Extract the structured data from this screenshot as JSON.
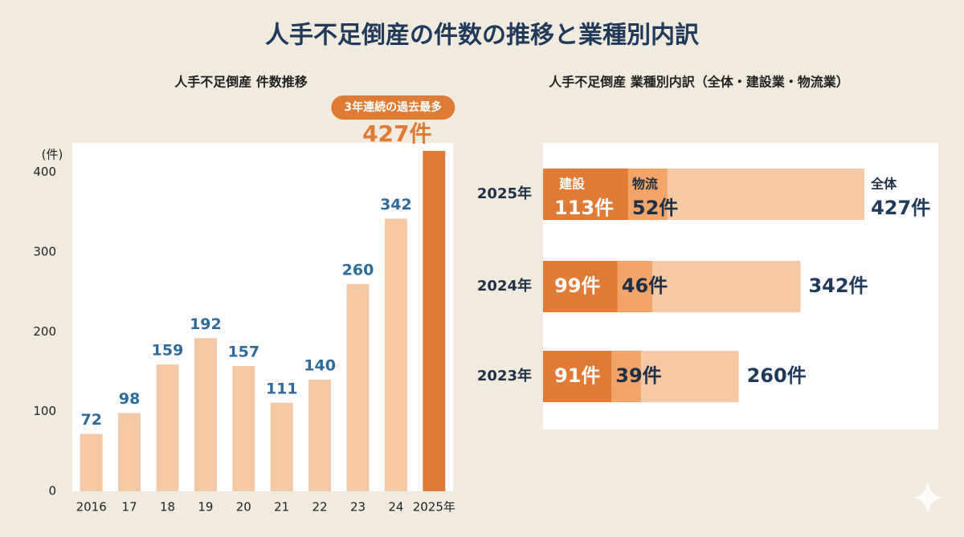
{
  "title": "人手不足倒産の件数の推移と業種別内訳",
  "chart_data": [
    {
      "type": "bar",
      "subtitle": "人手不足倒産 件数推移",
      "y_label": "(件)",
      "categories": [
        "2016",
        "17",
        "18",
        "19",
        "20",
        "21",
        "22",
        "23",
        "24",
        "2025年"
      ],
      "values": [
        72,
        98,
        159,
        192,
        157,
        111,
        140,
        260,
        342,
        427
      ],
      "value_labels": [
        "72",
        "98",
        "159",
        "192",
        "157",
        "111",
        "140",
        "260",
        "342",
        "427件"
      ],
      "colors": [
        "#f5c9a5",
        "#f5c9a5",
        "#f5c9a5",
        "#f5c9a5",
        "#f5c9a5",
        "#f5c9a5",
        "#f5c9a5",
        "#f5c9a5",
        "#f5c9a5",
        "#e07b35"
      ],
      "label_colors": [
        "#2f6b9a",
        "#2f6b9a",
        "#2f6b9a",
        "#2f6b9a",
        "#2f6b9a",
        "#2f6b9a",
        "#2f6b9a",
        "#2f6b9a",
        "#2f6b9a",
        "#e07b35"
      ],
      "annotation": "3年連続の過去最多",
      "ylim": [
        0,
        437
      ],
      "yticks": [
        0,
        100,
        200,
        300,
        400
      ],
      "grid": false
    },
    {
      "type": "barh",
      "subtitle": "人手不足倒産 業種別内訳（全体・建設業・物流業）",
      "categories": [
        "2025年",
        "2024年",
        "2023年"
      ],
      "series": [
        {
          "name": "建設",
          "color": "#e07b35",
          "values": [
            113,
            99,
            91
          ],
          "value_labels": [
            "113件",
            "99件",
            "91件"
          ]
        },
        {
          "name": "物流",
          "color": "#f2a469",
          "values": [
            52,
            46,
            39
          ],
          "value_labels": [
            "52件",
            "46件",
            "39件"
          ]
        },
        {
          "name": "全体",
          "color": "#f5c9a5",
          "values": [
            427,
            342,
            260
          ],
          "value_labels": [
            "427件",
            "342件",
            "260件"
          ]
        }
      ]
    }
  ]
}
